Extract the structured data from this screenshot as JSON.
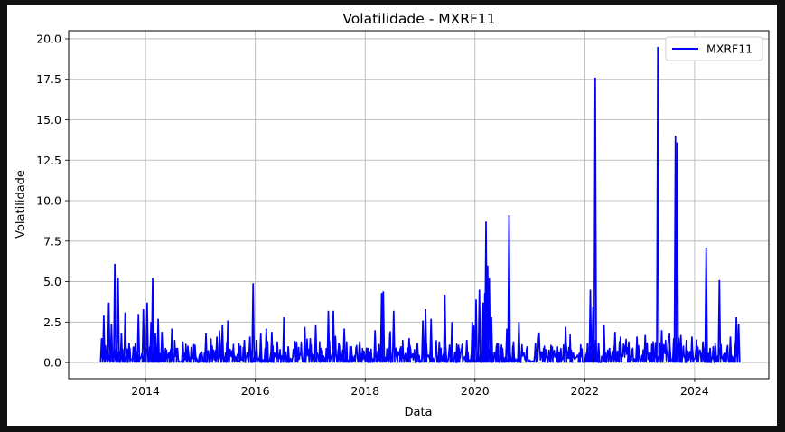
{
  "chart_data": {
    "type": "line",
    "title": "Volatilidade - MXRF11",
    "xlabel": "Data",
    "ylabel": "Volatilidade",
    "xlim": [
      2012.6,
      2025.35
    ],
    "ylim": [
      -1.0,
      20.5
    ],
    "x_ticks": [
      2014,
      2016,
      2018,
      2020,
      2022,
      2024
    ],
    "x_tick_labels": [
      "2014",
      "2016",
      "2018",
      "2020",
      "2022",
      "2024"
    ],
    "y_ticks": [
      0,
      2.5,
      5,
      7.5,
      10,
      12.5,
      15,
      17.5,
      20
    ],
    "y_tick_labels": [
      "0.0",
      "2.5",
      "5.0",
      "7.5",
      "10.0",
      "12.5",
      "15.0",
      "17.5",
      "20.0"
    ],
    "grid": true,
    "legend_position": "top-right",
    "series": [
      {
        "name": "MXRF11",
        "color": "#0000ff",
        "x": [
          2013.2,
          2013.24,
          2013.28,
          2013.33,
          2013.38,
          2013.44,
          2013.5,
          2013.56,
          2013.63,
          2013.7,
          2013.78,
          2013.87,
          2013.96,
          2014.03,
          2014.1,
          2014.13,
          2014.18,
          2014.23,
          2014.3,
          2014.38,
          2014.48,
          2014.58,
          2014.68,
          2014.78,
          2014.9,
          2015.0,
          2015.1,
          2015.2,
          2015.3,
          2015.4,
          2015.5,
          2015.6,
          2015.7,
          2015.8,
          2015.9,
          2015.96,
          2016.02,
          2016.1,
          2016.2,
          2016.3,
          2016.4,
          2016.52,
          2016.6,
          2016.75,
          2016.9,
          2017.0,
          2017.1,
          2017.2,
          2017.33,
          2017.42,
          2017.52,
          2017.62,
          2017.75,
          2017.9,
          2018.05,
          2018.18,
          2018.3,
          2018.33,
          2018.45,
          2018.52,
          2018.65,
          2018.8,
          2018.95,
          2019.05,
          2019.1,
          2019.2,
          2019.35,
          2019.45,
          2019.58,
          2019.7,
          2019.85,
          2019.95,
          2020.02,
          2020.08,
          2020.15,
          2020.18,
          2020.2,
          2020.23,
          2020.26,
          2020.3,
          2020.4,
          2020.5,
          2020.58,
          2020.62,
          2020.7,
          2020.8,
          2020.95,
          2021.1,
          2021.25,
          2021.4,
          2021.55,
          2021.65,
          2021.75,
          2021.9,
          2022.02,
          2022.05,
          2022.1,
          2022.15,
          2022.19,
          2022.25,
          2022.35,
          2022.45,
          2022.55,
          2022.65,
          2022.8,
          2022.95,
          2023.1,
          2023.25,
          2023.33,
          2023.4,
          2023.55,
          2023.62,
          2023.65,
          2023.68,
          2023.75,
          2023.85,
          2023.95,
          2024.05,
          2024.15,
          2024.21,
          2024.28,
          2024.38,
          2024.45,
          2024.55,
          2024.65,
          2024.72,
          2024.76,
          2024.8
        ],
        "values": [
          1.5,
          2.9,
          0.8,
          3.7,
          2.4,
          6.1,
          5.2,
          1.8,
          3.1,
          1.2,
          0.9,
          3.0,
          3.3,
          3.7,
          2.5,
          5.2,
          1.8,
          2.7,
          1.9,
          0.8,
          2.1,
          0.9,
          1.3,
          0.7,
          1.1,
          0.6,
          1.8,
          0.9,
          1.6,
          2.3,
          2.6,
          0.9,
          1.2,
          1.4,
          1.6,
          4.9,
          1.4,
          1.8,
          2.1,
          1.9,
          1.3,
          2.8,
          1.0,
          1.3,
          2.2,
          1.5,
          2.3,
          0.9,
          3.2,
          3.2,
          1.2,
          2.1,
          1.0,
          1.3,
          0.9,
          2.0,
          4.3,
          4.4,
          1.8,
          3.2,
          1.0,
          1.5,
          1.2,
          2.6,
          3.3,
          2.7,
          1.3,
          4.2,
          2.5,
          1.1,
          1.4,
          2.5,
          3.9,
          4.5,
          3.7,
          4.3,
          8.7,
          6.0,
          5.2,
          2.8,
          1.2,
          0.9,
          2.1,
          9.1,
          1.3,
          2.5,
          1.0,
          1.2,
          0.9,
          1.0,
          0.6,
          2.2,
          0.8,
          0.6,
          0.5,
          1.2,
          4.5,
          3.4,
          17.6,
          1.2,
          2.3,
          0.9,
          1.9,
          1.6,
          1.3,
          1.6,
          1.7,
          1.2,
          19.5,
          2.0,
          1.0,
          1.5,
          14.0,
          13.6,
          1.7,
          1.4,
          1.6,
          1.0,
          1.3,
          7.1,
          0.9,
          1.0,
          5.1,
          0.6,
          1.6,
          0.4,
          2.8,
          2.4
        ]
      }
    ]
  }
}
